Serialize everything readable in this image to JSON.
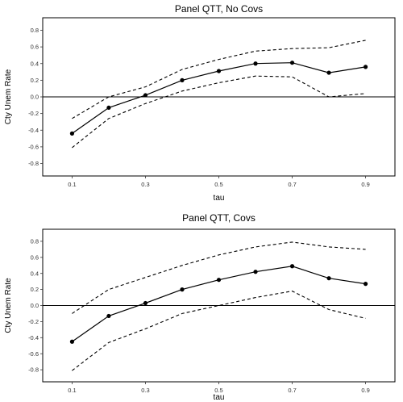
{
  "chart_data": [
    {
      "type": "line",
      "title": "Panel QTT, No Covs",
      "xlabel": "tau",
      "ylabel": "Cty Unem Rate",
      "xlim": [
        0.02,
        0.98
      ],
      "ylim": [
        -0.95,
        0.95
      ],
      "xticks": [
        0.1,
        0.3,
        0.5,
        0.7,
        0.9
      ],
      "xtick_labels": [
        "0.1",
        "0.3",
        "0.5",
        "0.7",
        "0.9"
      ],
      "yticks": [
        -0.8,
        -0.6,
        -0.4,
        -0.2,
        0.0,
        0.2,
        0.4,
        0.6,
        0.8
      ],
      "ytick_labels": [
        "-0.8",
        "-0.6",
        "-0.4",
        "-0.2",
        "0.0",
        "0.2",
        "0.4",
        "0.6",
        "0.8"
      ],
      "hline": 0,
      "grid": false,
      "x": [
        0.1,
        0.2,
        0.3,
        0.4,
        0.5,
        0.6,
        0.7,
        0.8,
        0.9
      ],
      "series": [
        {
          "role": "estimate",
          "style": "solid-with-points",
          "values": [
            -0.44,
            -0.13,
            0.02,
            0.2,
            0.31,
            0.4,
            0.41,
            0.29,
            0.36
          ]
        },
        {
          "role": "upper",
          "style": "dashed",
          "values": [
            -0.26,
            0.0,
            0.12,
            0.33,
            0.45,
            0.55,
            0.58,
            0.59,
            0.68
          ]
        },
        {
          "role": "lower",
          "style": "dashed",
          "values": [
            -0.61,
            -0.26,
            -0.08,
            0.07,
            0.17,
            0.25,
            0.24,
            0.0,
            0.04
          ]
        }
      ]
    },
    {
      "type": "line",
      "title": "Panel QTT, Covs",
      "xlabel": "tau",
      "ylabel": "Cty Unem Rate",
      "xlim": [
        0.02,
        0.98
      ],
      "ylim": [
        -0.95,
        0.95
      ],
      "xticks": [
        0.1,
        0.3,
        0.5,
        0.7,
        0.9
      ],
      "xtick_labels": [
        "0.1",
        "0.3",
        "0.5",
        "0.7",
        "0.9"
      ],
      "yticks": [
        -0.8,
        -0.6,
        -0.4,
        -0.2,
        0.0,
        0.2,
        0.4,
        0.6,
        0.8
      ],
      "ytick_labels": [
        "-0.8",
        "-0.6",
        "-0.4",
        "-0.2",
        "0.0",
        "0.2",
        "0.4",
        "0.6",
        "0.8"
      ],
      "hline": 0,
      "grid": false,
      "x": [
        0.1,
        0.2,
        0.3,
        0.4,
        0.5,
        0.6,
        0.7,
        0.8,
        0.9
      ],
      "series": [
        {
          "role": "estimate",
          "style": "solid-with-points",
          "values": [
            -0.45,
            -0.13,
            0.03,
            0.2,
            0.32,
            0.42,
            0.49,
            0.34,
            0.27
          ]
        },
        {
          "role": "upper",
          "style": "dashed",
          "values": [
            -0.1,
            0.2,
            0.35,
            0.5,
            0.63,
            0.73,
            0.79,
            0.73,
            0.7
          ]
        },
        {
          "role": "lower",
          "style": "dashed",
          "values": [
            -0.81,
            -0.46,
            -0.29,
            -0.1,
            0.0,
            0.1,
            0.18,
            -0.05,
            -0.16
          ]
        }
      ]
    }
  ]
}
